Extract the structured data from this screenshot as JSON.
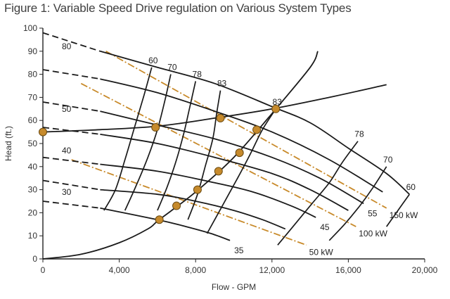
{
  "chart_data": {
    "type": "line",
    "title": "Figure 1: Variable Speed Drive regulation on Various System Types",
    "xlabel": "Flow - GPM",
    "ylabel": "Head (ft.)",
    "xlim": [
      0,
      20000
    ],
    "ylim": [
      0,
      100
    ],
    "x_ticks": [
      0,
      4000,
      8000,
      12000,
      16000,
      20000
    ],
    "x_tick_labels": [
      "0",
      "4,000",
      "8,000",
      "12,000",
      "16,000",
      "20,000"
    ],
    "y_ticks": [
      0,
      10,
      20,
      30,
      40,
      50,
      60,
      70,
      80,
      90,
      100
    ],
    "grid": false,
    "legend": "none",
    "colors": {
      "curve": "#1a1a1a",
      "power_line": "#c88a2a",
      "operating_point": "#c68a2c",
      "point_edge": "#6b4a10",
      "axis_text": "#333333"
    },
    "speed_labels": [
      "80",
      "50",
      "40",
      "30"
    ],
    "pump_curves": [
      {
        "dash": [
          [
            0,
            98
          ],
          [
            3000,
            90
          ]
        ],
        "solid": [
          [
            3000,
            90
          ],
          [
            6000,
            83
          ],
          [
            9000,
            76
          ],
          [
            12000,
            66
          ],
          [
            14000,
            59
          ],
          [
            16000,
            48
          ],
          [
            18000,
            37
          ],
          [
            19200,
            28
          ]
        ]
      },
      {
        "dash": [
          [
            0,
            82
          ],
          [
            3000,
            78
          ]
        ],
        "solid": [
          [
            3000,
            78
          ],
          [
            6000,
            72
          ],
          [
            9000,
            64
          ],
          [
            12000,
            55
          ],
          [
            15000,
            43
          ],
          [
            17800,
            29
          ]
        ]
      },
      {
        "dash": [
          [
            0,
            68
          ],
          [
            3000,
            64
          ]
        ],
        "solid": [
          [
            3000,
            64
          ],
          [
            6000,
            58
          ],
          [
            9000,
            52
          ],
          [
            12000,
            44
          ],
          [
            14500,
            35
          ],
          [
            16800,
            24
          ]
        ]
      },
      {
        "dash": [
          [
            0,
            57
          ],
          [
            3000,
            54
          ]
        ],
        "solid": [
          [
            3000,
            54
          ],
          [
            6000,
            50
          ],
          [
            9000,
            44
          ],
          [
            12000,
            37
          ],
          [
            14000,
            30
          ],
          [
            16000,
            21
          ]
        ]
      },
      {
        "dash": [
          [
            0,
            44
          ],
          [
            3000,
            41
          ]
        ],
        "solid": [
          [
            3000,
            41
          ],
          [
            6000,
            38
          ],
          [
            9000,
            33
          ],
          [
            11000,
            29
          ],
          [
            13000,
            23
          ],
          [
            14300,
            18
          ]
        ]
      },
      {
        "dash": [
          [
            0,
            34
          ],
          [
            3000,
            30
          ]
        ],
        "solid": [
          [
            3000,
            30
          ],
          [
            6000,
            28
          ],
          [
            8000,
            25
          ],
          [
            10000,
            21
          ],
          [
            11500,
            17
          ],
          [
            12700,
            13
          ]
        ]
      },
      {
        "dash": [
          [
            0,
            25
          ],
          [
            3000,
            22
          ]
        ],
        "solid": [
          [
            3000,
            22
          ],
          [
            6000,
            17
          ],
          [
            7500,
            14
          ],
          [
            8800,
            11
          ],
          [
            9800,
            8
          ]
        ]
      }
    ],
    "efficiency_curves": [
      {
        "label": "60",
        "points": [
          [
            5700,
            83
          ],
          [
            5300,
            71
          ],
          [
            4800,
            57
          ],
          [
            4300,
            43
          ],
          [
            3800,
            30
          ],
          [
            3200,
            21
          ]
        ]
      },
      {
        "label": "70",
        "points": [
          [
            6700,
            80
          ],
          [
            6400,
            69
          ],
          [
            6000,
            56
          ],
          [
            5500,
            44
          ],
          [
            4900,
            32
          ],
          [
            4300,
            21
          ]
        ]
      },
      {
        "label": "78",
        "points": [
          [
            8000,
            77
          ],
          [
            7700,
            66
          ],
          [
            7400,
            55
          ],
          [
            7000,
            43
          ],
          [
            6500,
            31
          ],
          [
            6000,
            21
          ]
        ]
      },
      {
        "label": "83",
        "points": [
          [
            9300,
            73
          ],
          [
            9100,
            63
          ],
          [
            8900,
            52
          ],
          [
            8500,
            40
          ],
          [
            8100,
            28
          ],
          [
            7600,
            17
          ]
        ]
      },
      {
        "label": "83",
        "points": [
          [
            12200,
            65
          ],
          [
            11500,
            56
          ],
          [
            10900,
            46
          ],
          [
            10200,
            35
          ],
          [
            9400,
            23
          ],
          [
            8600,
            11
          ]
        ]
      },
      {
        "label": "78",
        "points": [
          [
            16500,
            51
          ],
          [
            15700,
            42
          ],
          [
            15000,
            33
          ],
          [
            14100,
            24
          ],
          [
            13100,
            14
          ],
          [
            12300,
            6
          ]
        ]
      },
      {
        "label": "70",
        "points": [
          [
            18000,
            40
          ],
          [
            17300,
            31
          ],
          [
            16600,
            23
          ],
          [
            15800,
            15
          ],
          [
            15000,
            8
          ]
        ]
      },
      {
        "label": "60",
        "points": [
          [
            19200,
            28
          ],
          [
            18600,
            21
          ],
          [
            18000,
            14
          ]
        ]
      }
    ],
    "system_curves": [
      {
        "points": [
          [
            0,
            55
          ],
          [
            3000,
            56
          ],
          [
            6000,
            57.5
          ],
          [
            9000,
            61
          ],
          [
            12000,
            65
          ],
          [
            15000,
            70
          ],
          [
            18000,
            75.5
          ]
        ]
      },
      {
        "points": [
          [
            0,
            0
          ],
          [
            2000,
            2
          ],
          [
            4000,
            7
          ],
          [
            5500,
            13
          ],
          [
            6100,
            17
          ],
          [
            8000,
            29
          ],
          [
            10000,
            44
          ],
          [
            12000,
            63
          ],
          [
            14000,
            83
          ],
          [
            14400,
            90
          ]
        ]
      }
    ],
    "power_lines": [
      {
        "label": "150 kW",
        "points": [
          [
            3300,
            90
          ],
          [
            18000,
            22
          ]
        ]
      },
      {
        "label": "100 kW",
        "points": [
          [
            2000,
            76
          ],
          [
            16400,
            14
          ]
        ]
      },
      {
        "label": "50 kW",
        "points": [
          [
            1500,
            43
          ],
          [
            13800,
            6
          ]
        ]
      }
    ],
    "speed_end_labels": [
      {
        "label": "55",
        "points": [
          [
            16800,
            24
          ],
          [
            16800,
            24
          ]
        ]
      },
      {
        "label": "45",
        "points": [
          [
            14300,
            18
          ],
          [
            14300,
            18
          ]
        ]
      },
      {
        "label": "35",
        "points": [
          [
            9800,
            8
          ],
          [
            9800,
            8
          ]
        ]
      }
    ],
    "operating_points": [
      {
        "x": 0,
        "y": 55
      },
      {
        "x": 5900,
        "y": 57
      },
      {
        "x": 9300,
        "y": 61
      },
      {
        "x": 12200,
        "y": 65
      },
      {
        "x": 11200,
        "y": 56
      },
      {
        "x": 10300,
        "y": 46
      },
      {
        "x": 9200,
        "y": 38
      },
      {
        "x": 8100,
        "y": 30
      },
      {
        "x": 7000,
        "y": 23
      },
      {
        "x": 6100,
        "y": 17
      }
    ]
  }
}
